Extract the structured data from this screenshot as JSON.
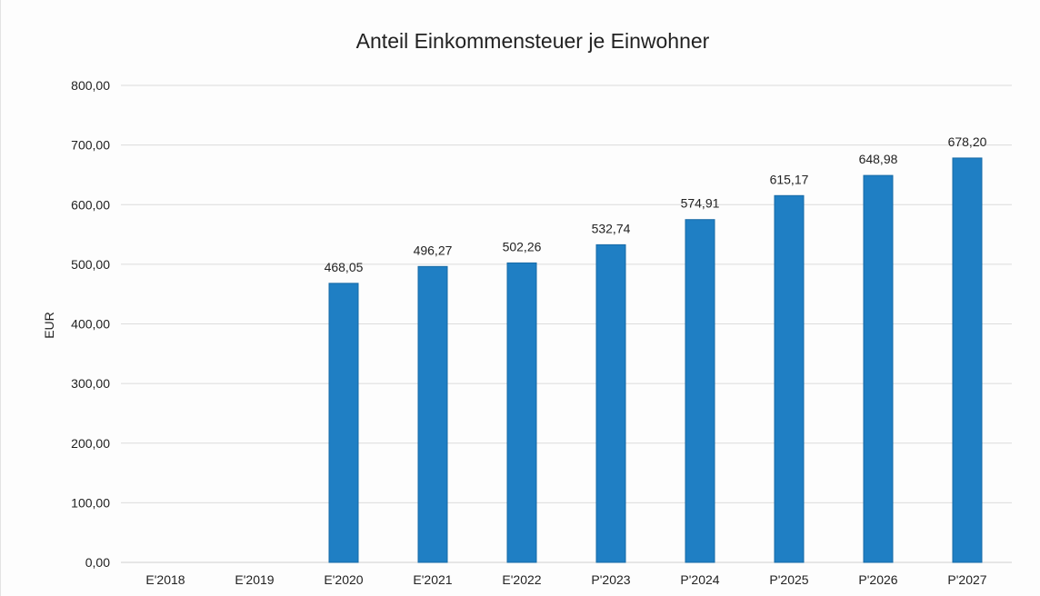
{
  "chart_data": {
    "type": "bar",
    "title": "Anteil Einkommensteuer je Einwohner",
    "xlabel": "",
    "ylabel": "EUR",
    "ylim": [
      0,
      800
    ],
    "yticks": [
      "0,00",
      "100,00",
      "200,00",
      "300,00",
      "400,00",
      "500,00",
      "600,00",
      "700,00",
      "800,00"
    ],
    "categories": [
      "E'2018",
      "E'2019",
      "E'2020",
      "E'2021",
      "E'2022",
      "P'2023",
      "P'2024",
      "P'2025",
      "P'2026",
      "P'2027"
    ],
    "values": [
      null,
      null,
      468.05,
      496.27,
      502.26,
      532.74,
      574.91,
      615.17,
      648.98,
      678.2
    ],
    "data_labels": [
      "",
      "",
      "468,05",
      "496,27",
      "502,26",
      "532,74",
      "574,91",
      "615,17",
      "648,98",
      "678,20"
    ],
    "grid": true,
    "legend": "none",
    "colors": {
      "bar": "#1f7fc4",
      "bar_edge": "#176aa6"
    }
  }
}
